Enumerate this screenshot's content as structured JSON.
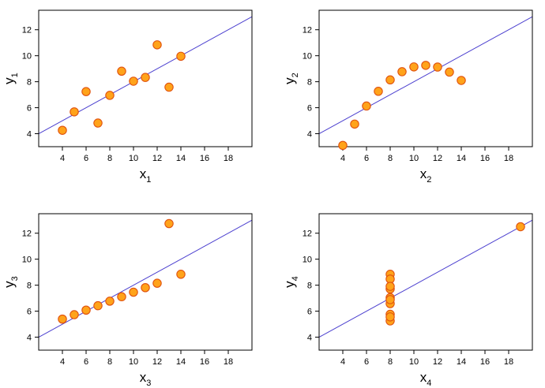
{
  "colors": {
    "point_fill": "#ffa31a",
    "point_stroke": "#e0520f",
    "line": "#4b3fcf",
    "frame": "#000000"
  },
  "chart_data": [
    {
      "type": "scatter",
      "xlabel": "x",
      "xlabel_sub": "1",
      "ylabel": "y",
      "ylabel_sub": "1",
      "xlim": [
        2,
        20
      ],
      "ylim": [
        3,
        13.5
      ],
      "xticks": [
        4,
        6,
        8,
        10,
        12,
        14,
        16,
        18
      ],
      "yticks": [
        4,
        6,
        8,
        10,
        12
      ],
      "grid": false,
      "x": [
        10,
        8,
        13,
        9,
        11,
        14,
        6,
        4,
        12,
        7,
        5
      ],
      "y": [
        8.04,
        6.95,
        7.58,
        8.81,
        8.33,
        9.96,
        7.24,
        4.26,
        10.84,
        4.82,
        5.68
      ],
      "fit_line": {
        "intercept": 3.0,
        "slope": 0.5
      }
    },
    {
      "type": "scatter",
      "xlabel": "x",
      "xlabel_sub": "2",
      "ylabel": "y",
      "ylabel_sub": "2",
      "xlim": [
        2,
        20
      ],
      "ylim": [
        3,
        13.5
      ],
      "xticks": [
        4,
        6,
        8,
        10,
        12,
        14,
        16,
        18
      ],
      "yticks": [
        4,
        6,
        8,
        10,
        12
      ],
      "grid": false,
      "x": [
        10,
        8,
        13,
        9,
        11,
        14,
        6,
        4,
        12,
        7,
        5
      ],
      "y": [
        9.14,
        8.14,
        8.74,
        8.77,
        9.26,
        8.1,
        6.13,
        3.1,
        9.13,
        7.26,
        4.74
      ],
      "fit_line": {
        "intercept": 3.0,
        "slope": 0.5
      }
    },
    {
      "type": "scatter",
      "xlabel": "x",
      "xlabel_sub": "3",
      "ylabel": "y",
      "ylabel_sub": "3",
      "xlim": [
        2,
        20
      ],
      "ylim": [
        3,
        13.5
      ],
      "xticks": [
        4,
        6,
        8,
        10,
        12,
        14,
        16,
        18
      ],
      "yticks": [
        4,
        6,
        8,
        10,
        12
      ],
      "grid": false,
      "x": [
        10,
        8,
        13,
        9,
        11,
        14,
        6,
        4,
        12,
        7,
        5
      ],
      "y": [
        7.46,
        6.77,
        12.74,
        7.11,
        7.81,
        8.84,
        6.08,
        5.39,
        8.15,
        6.42,
        5.73
      ],
      "fit_line": {
        "intercept": 3.0,
        "slope": 0.5
      }
    },
    {
      "type": "scatter",
      "xlabel": "x",
      "xlabel_sub": "4",
      "ylabel": "y",
      "ylabel_sub": "4",
      "xlim": [
        2,
        20
      ],
      "ylim": [
        3,
        13.5
      ],
      "xticks": [
        4,
        6,
        8,
        10,
        12,
        14,
        16,
        18
      ],
      "yticks": [
        4,
        6,
        8,
        10,
        12
      ],
      "grid": false,
      "x": [
        8,
        8,
        8,
        8,
        8,
        8,
        8,
        19,
        8,
        8,
        8
      ],
      "y": [
        6.58,
        5.76,
        7.71,
        8.84,
        8.47,
        7.04,
        5.25,
        12.5,
        5.56,
        7.91,
        6.89
      ],
      "fit_line": {
        "intercept": 3.0,
        "slope": 0.5
      }
    }
  ]
}
